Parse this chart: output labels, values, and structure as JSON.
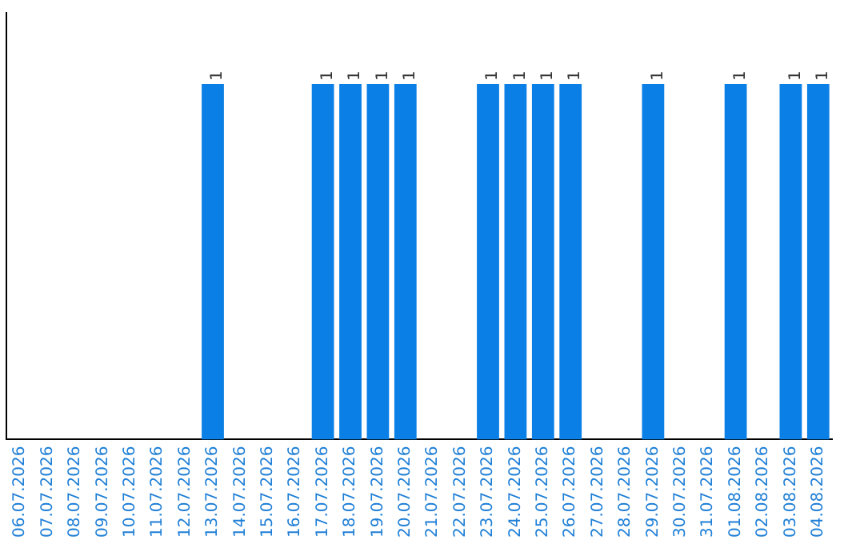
{
  "chart_data": {
    "type": "bar",
    "categories": [
      "06.07.2026",
      "07.07.2026",
      "08.07.2026",
      "09.07.2026",
      "10.07.2026",
      "11.07.2026",
      "12.07.2026",
      "13.07.2026",
      "14.07.2026",
      "15.07.2026",
      "16.07.2026",
      "17.07.2026",
      "18.07.2026",
      "19.07.2026",
      "20.07.2026",
      "21.07.2026",
      "22.07.2026",
      "23.07.2026",
      "24.07.2026",
      "25.07.2026",
      "26.07.2026",
      "27.07.2026",
      "28.07.2026",
      "29.07.2026",
      "30.07.2026",
      "31.07.2026",
      "01.08.2026",
      "02.08.2026",
      "03.08.2026",
      "04.08.2026"
    ],
    "values": [
      0,
      0,
      0,
      0,
      0,
      0,
      0,
      1,
      0,
      0,
      0,
      1,
      1,
      1,
      1,
      0,
      0,
      1,
      1,
      1,
      1,
      0,
      0,
      1,
      0,
      0,
      1,
      0,
      1,
      1
    ],
    "value_labels": [
      null,
      null,
      null,
      null,
      null,
      null,
      null,
      "1",
      null,
      null,
      null,
      "1",
      "1",
      "1",
      "1",
      null,
      null,
      "1",
      "1",
      "1",
      "1",
      null,
      null,
      "1",
      null,
      null,
      "1",
      null,
      "1",
      "1"
    ],
    "color": "#0a7fe6",
    "grid": false,
    "legend": false,
    "tick_labels": "x"
  }
}
